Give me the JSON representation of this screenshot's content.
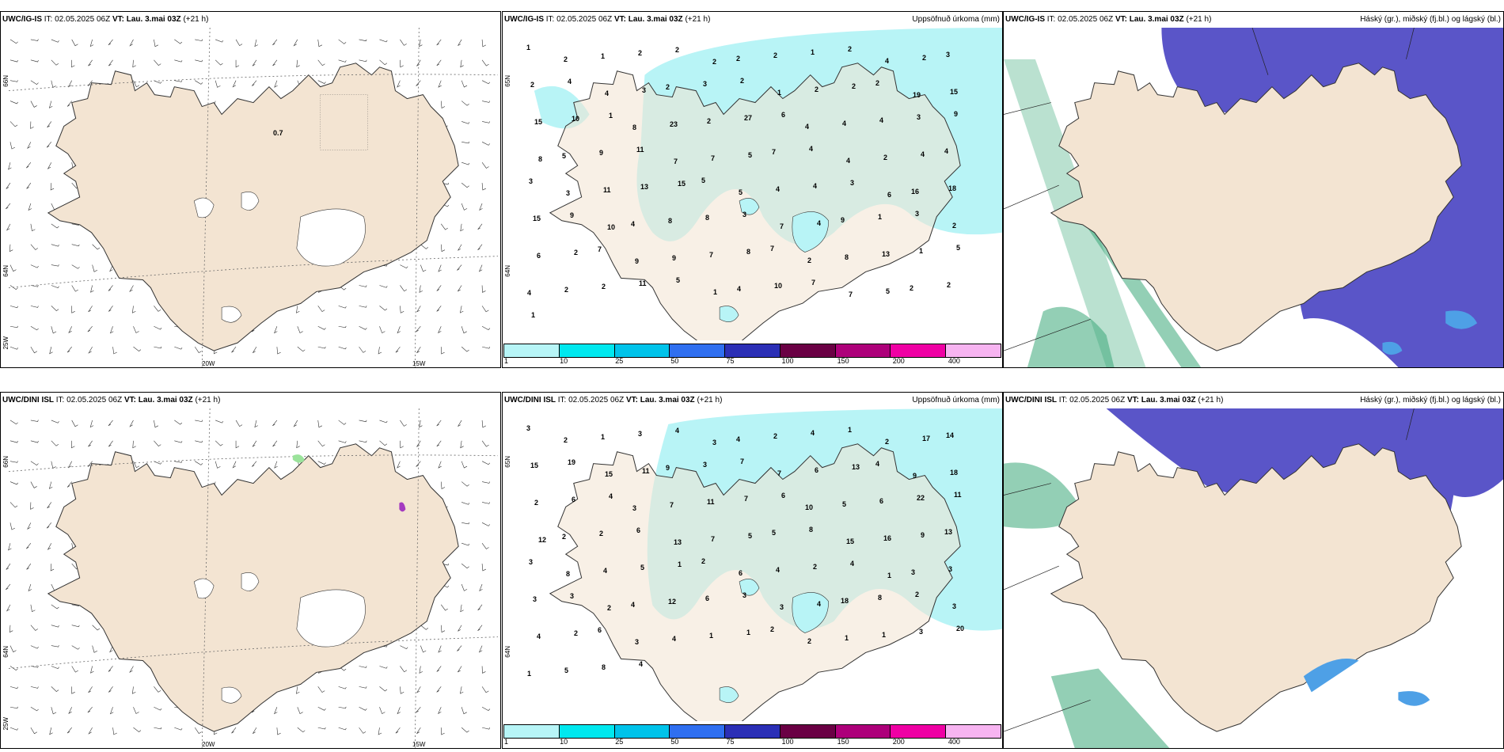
{
  "colors": {
    "land": "#f3e4d2",
    "coast": "#333333",
    "precip_light": "#b8f4f6",
    "precip": "#00e5ef",
    "cloud_high": "#5a55c8",
    "cloud_mid": "#4ea0e6",
    "cloud_low": "#3aa878"
  },
  "top_row": {
    "wind": {
      "model": "UWC/IG-IS",
      "it_label": "IT:",
      "it_value": "02.05.2025 06Z",
      "vt_label": "VT: Lau. 3.mai 03Z",
      "lead": "(+21 h)",
      "value_label": "0.7",
      "lat_labels": [
        "66N",
        "64N",
        "25W"
      ],
      "lon_labels": [
        "20W",
        "15W"
      ]
    },
    "precip": {
      "model": "UWC/IG-IS",
      "it_label": "IT:",
      "it_value": "02.05.2025 06Z",
      "vt_label": "VT: Lau. 3.mai 03Z",
      "lead": "(+21 h)",
      "title": "Uppsöfnuð úrkoma (mm)",
      "lat_labels": [
        "65N",
        "64N"
      ],
      "numbers": [
        "1",
        "2",
        "1",
        "2",
        "2",
        "2",
        "2",
        "2",
        "1",
        "2",
        "4",
        "2",
        "3",
        "2",
        "4",
        "4",
        "3",
        "2",
        "3",
        "2",
        "1",
        "2",
        "2",
        "2",
        "19",
        "15",
        "15",
        "10",
        "1",
        "8",
        "23",
        "2",
        "27",
        "6",
        "4",
        "4",
        "4",
        "3",
        "9",
        "8",
        "5",
        "9",
        "11",
        "7",
        "7",
        "5",
        "7",
        "4",
        "4",
        "2",
        "4",
        "4",
        "3",
        "3",
        "11",
        "13",
        "15",
        "5",
        "5",
        "4",
        "4",
        "3",
        "6",
        "16",
        "18",
        "15",
        "9",
        "10",
        "4",
        "8",
        "8",
        "3",
        "7",
        "4",
        "9",
        "1",
        "3",
        "2",
        "6",
        "2",
        "7",
        "9",
        "9",
        "7",
        "8",
        "7",
        "2",
        "8",
        "13",
        "1",
        "5",
        "4",
        "2",
        "2",
        "11",
        "5",
        "1",
        "4",
        "10",
        "7",
        "7",
        "5",
        "2",
        "2",
        "1"
      ]
    },
    "cloud": {
      "model": "UWC/IG-IS",
      "it_label": "IT:",
      "it_value": "02.05.2025 06Z",
      "vt_label": "VT: Lau. 3.mai 03Z",
      "lead": "(+21 h)",
      "title": "Háský (gr.), miðský (fj.bl.) og lágský (bl.)"
    }
  },
  "bottom_row": {
    "wind": {
      "model": "UWC/DINI ISL",
      "it_label": "IT:",
      "it_value": "02.05.2025 06Z",
      "vt_label": "VT: Lau. 3.mai 03Z",
      "lead": "(+21 h)",
      "lat_labels": [
        "66N",
        "64N",
        "25W"
      ],
      "lon_labels": [
        "20W",
        "15W"
      ]
    },
    "precip": {
      "model": "UWC/DINI ISL",
      "it_label": "IT:",
      "it_value": "02.05.2025 06Z",
      "vt_label": "VT: Lau. 3.mai 03Z",
      "lead": "(+21 h)",
      "title": "Uppsöfnuð úrkoma (mm)",
      "lat_labels": [
        "65N",
        "64N"
      ],
      "numbers": [
        "3",
        "2",
        "1",
        "3",
        "4",
        "3",
        "4",
        "2",
        "4",
        "1",
        "2",
        "17",
        "14",
        "15",
        "19",
        "15",
        "11",
        "9",
        "3",
        "7",
        "7",
        "6",
        "13",
        "4",
        "9",
        "18",
        "2",
        "6",
        "4",
        "3",
        "7",
        "11",
        "7",
        "6",
        "10",
        "5",
        "6",
        "22",
        "11",
        "12",
        "2",
        "2",
        "6",
        "13",
        "7",
        "5",
        "5",
        "8",
        "15",
        "16",
        "9",
        "13",
        "3",
        "8",
        "4",
        "5",
        "1",
        "2",
        "6",
        "4",
        "2",
        "4",
        "1",
        "3",
        "3",
        "3",
        "3",
        "2",
        "4",
        "12",
        "6",
        "3",
        "3",
        "4",
        "18",
        "8",
        "2",
        "3",
        "4",
        "2",
        "6",
        "3",
        "4",
        "1",
        "1",
        "2",
        "2",
        "1",
        "1",
        "3",
        "20",
        "1",
        "5",
        "8",
        "4"
      ]
    },
    "cloud": {
      "model": "UWC/DINI ISL",
      "it_label": "IT:",
      "it_value": "02.05.2025 06Z",
      "vt_label": "VT: Lau. 3.mai 03Z",
      "lead": "(+21 h)",
      "title": "Háský (gr.), miðský (fj.bl.) og lágský (bl.)"
    }
  },
  "legend": {
    "ticks": [
      "1",
      "10",
      "25",
      "50",
      "75",
      "100",
      "150",
      "200",
      "400"
    ],
    "swatches": [
      "#b7f5f7",
      "#00e8ef",
      "#00c3ea",
      "#2f6ff0",
      "#2b2fb6",
      "#6a0044",
      "#ad007a",
      "#ef00a4",
      "#f7b4f1"
    ]
  }
}
